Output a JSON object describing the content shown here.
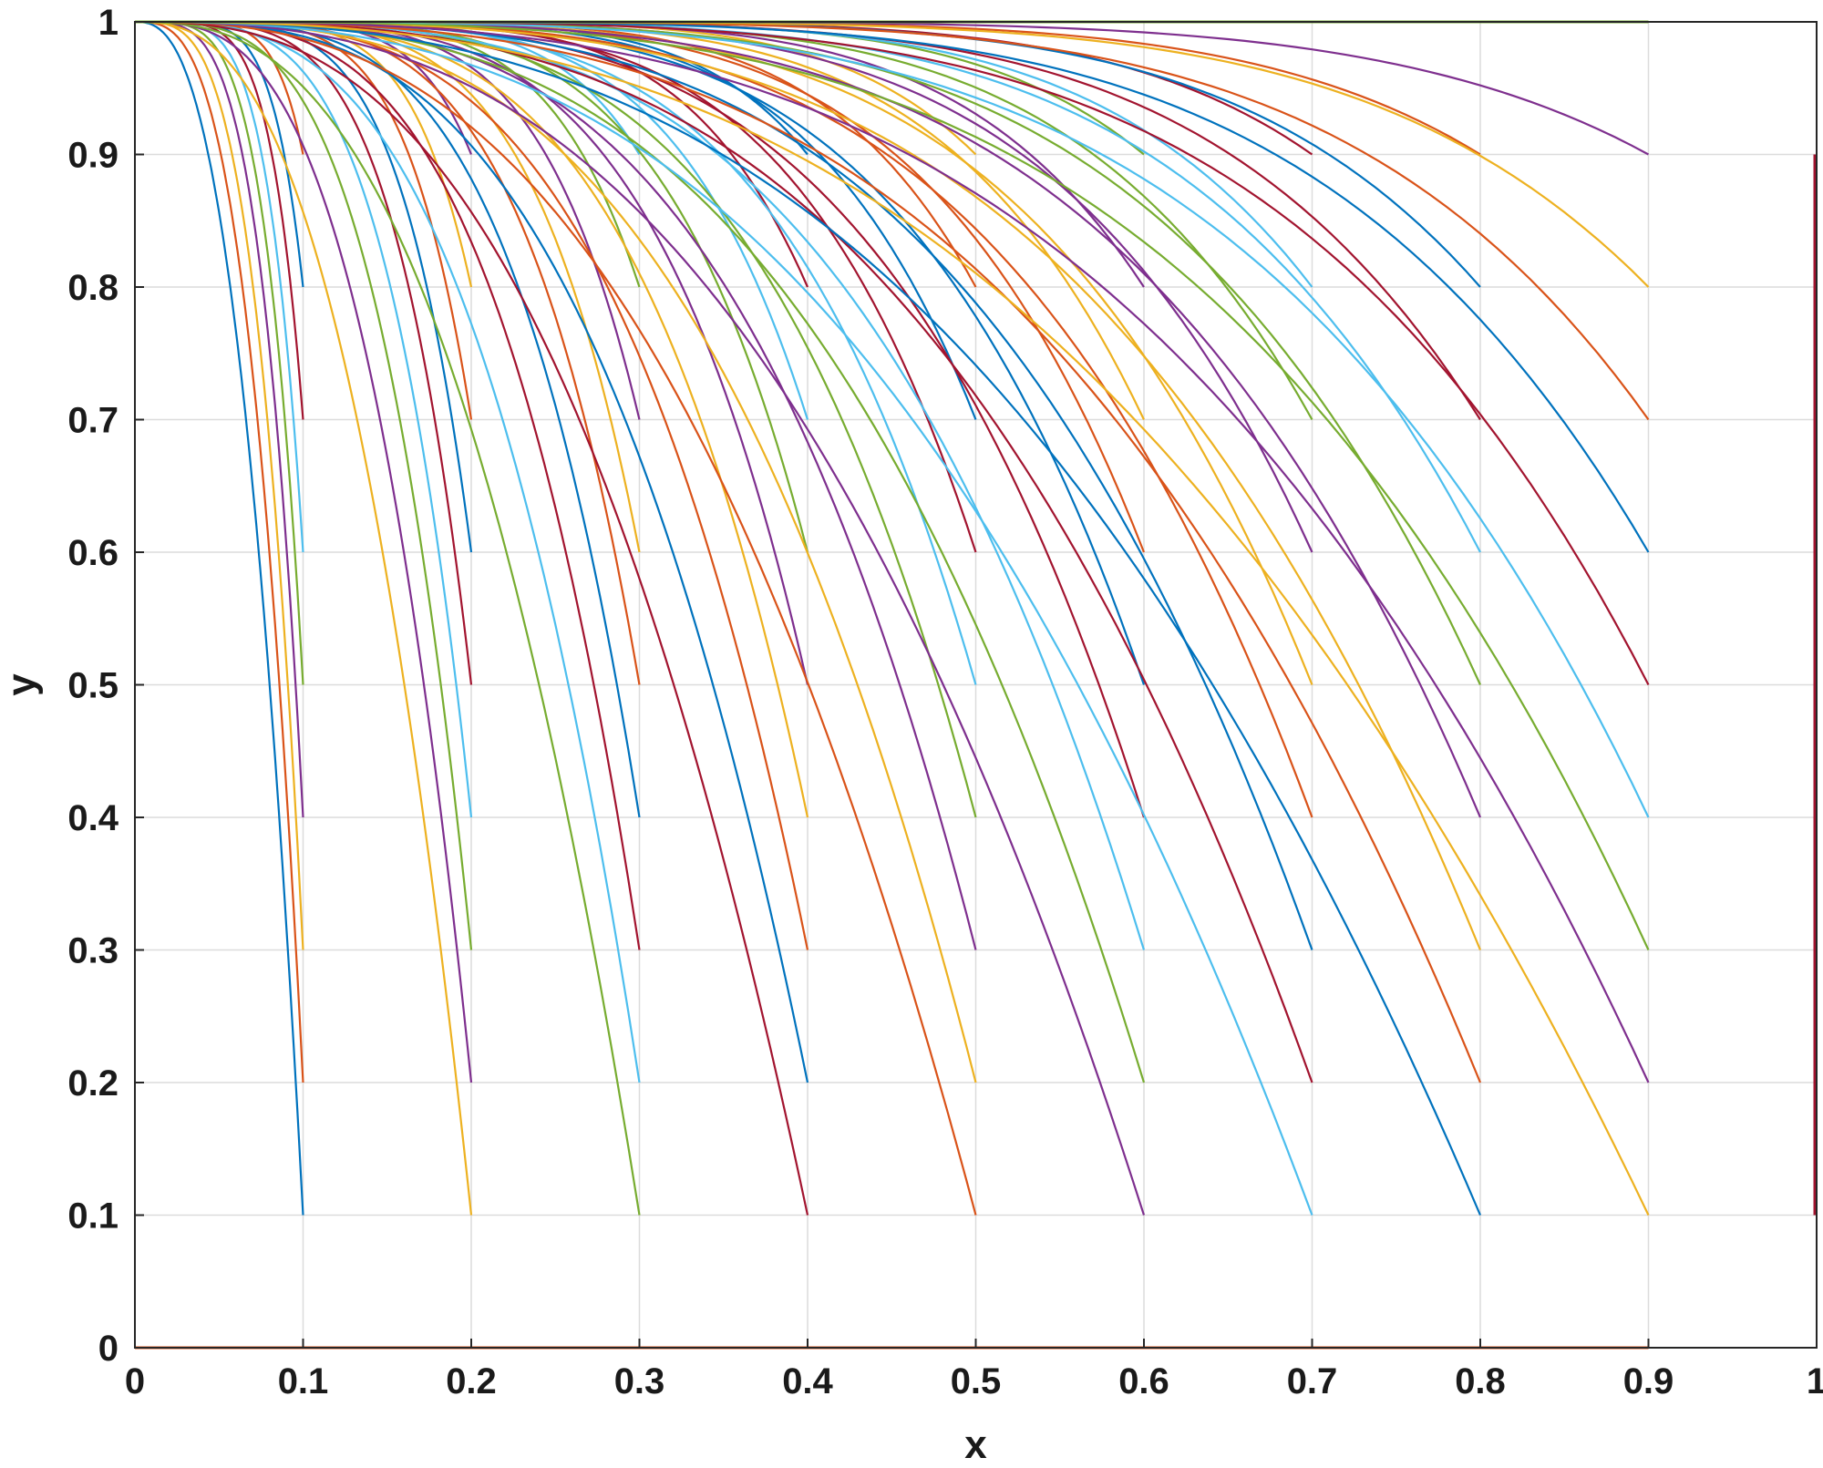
{
  "chart_data": {
    "type": "line",
    "title": "",
    "xlabel": "x",
    "ylabel": "y",
    "xlim": [
      0,
      1
    ],
    "ylim": [
      0,
      1
    ],
    "grid": true,
    "legend": "none",
    "x_ticks": [
      "0",
      "0.1",
      "0.2",
      "0.3",
      "0.4",
      "0.5",
      "0.6",
      "0.7",
      "0.8",
      "0.9",
      "1"
    ],
    "y_ticks": [
      "0",
      "0.1",
      "0.2",
      "0.3",
      "0.4",
      "0.5",
      "0.6",
      "0.7",
      "0.8",
      "0.9",
      "1"
    ],
    "series_colors": [
      "#0072BD",
      "#D95319",
      "#EDB120",
      "#7E2F8E",
      "#77AC30",
      "#4DBEEE",
      "#A2142F"
    ],
    "curve_family": {
      "description_of_data": "each curve starts at y=1 and decreases to end at (x_end, y_end)",
      "x_end_values": [
        0.1,
        0.2,
        0.3,
        0.4,
        0.5,
        0.6,
        0.7,
        0.8,
        0.9
      ],
      "y_end_values": [
        0.1,
        0.2,
        0.3,
        0.4,
        0.5,
        0.6,
        0.7,
        0.8,
        0.9
      ],
      "baseline_y": 0
    }
  }
}
